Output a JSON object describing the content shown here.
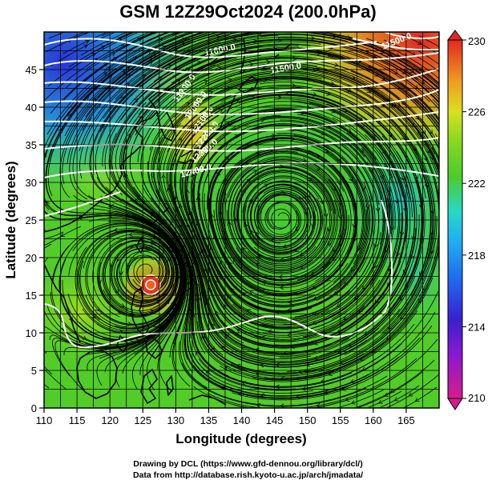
{
  "title": "GSM 12Z29Oct2024 (200.0hPa)",
  "map": {
    "xlabel": "Longitude (degrees)",
    "ylabel": "Latitude  (degrees)",
    "x_ticks": [
      "110",
      "115",
      "120",
      "125",
      "130",
      "135",
      "140",
      "145",
      "150",
      "155",
      "160",
      "165"
    ],
    "y_ticks": [
      "0",
      "5",
      "10",
      "15",
      "20",
      "25",
      "30",
      "35",
      "40",
      "45"
    ],
    "lon_range": [
      110,
      170
    ],
    "lat_range": [
      0,
      50
    ],
    "contour_labels": [
      "11500.0",
      "11600.0",
      "11500.0",
      "11700.0",
      "12000.0",
      "12100.0",
      "12200.0",
      "12300.0",
      "12400.0"
    ],
    "cyclone_center": {
      "lon": 125.8,
      "lat": 18.2
    },
    "anticyclone_center": {
      "lon": 146.0,
      "lat": 25.2
    }
  },
  "colorbar": {
    "ticks": [
      "230",
      "226",
      "222",
      "218",
      "214",
      "210"
    ],
    "range": [
      210,
      230
    ],
    "colors": [
      "#d81b8a",
      "#3a1fd0",
      "#1e8ff0",
      "#28d8c8",
      "#4ccc2a",
      "#b8e61e",
      "#f0c820",
      "#f08020",
      "#e02a20"
    ]
  },
  "credits": {
    "line1": "Drawing by DCL (https://www.gfd-dennou.org/library/dcl/)",
    "line2": "Data from http://database.rish.kyoto-u.ac.jp/arch/jmadata/"
  }
}
